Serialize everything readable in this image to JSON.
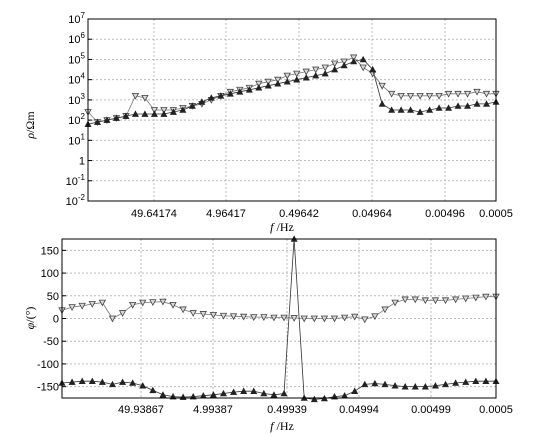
{
  "chart_data": [
    {
      "type": "scatter",
      "xlabel": "f /Hz",
      "ylabel": "ρ/Ωm",
      "yscale": "log",
      "ylim": [
        -2,
        7
      ],
      "yticks": [
        "10-2",
        "10-1",
        "1",
        "101",
        "102",
        "103",
        "104",
        "105",
        "106",
        "107"
      ],
      "xticks": [
        "49.64174",
        "4.96417",
        "0.49642",
        "0.04964",
        "0.00496",
        "0.0005"
      ],
      "grid": true,
      "series": [
        {
          "marker": "triangle-down-open",
          "color": "#777777",
          "x": [
            0,
            1,
            2,
            3,
            4,
            5,
            6,
            7,
            8,
            9,
            10,
            11,
            12,
            13,
            14,
            15,
            16,
            17,
            18,
            19,
            20,
            21,
            22,
            23,
            24,
            25,
            26,
            27,
            28,
            29,
            30,
            31,
            32,
            33,
            34,
            35,
            36,
            37,
            38,
            39,
            40,
            41,
            42,
            43
          ],
          "y": [
            2.4,
            1.9,
            2.0,
            2.1,
            2.2,
            3.2,
            3.1,
            2.5,
            2.5,
            2.5,
            2.6,
            2.7,
            2.8,
            3.0,
            3.2,
            3.4,
            3.5,
            3.6,
            3.8,
            3.9,
            4.0,
            4.2,
            4.3,
            4.4,
            4.5,
            4.6,
            4.8,
            4.9,
            5.1,
            4.6,
            4.3,
            3.7,
            3.3,
            3.2,
            3.2,
            3.2,
            3.2,
            3.2,
            3.3,
            3.3,
            3.3,
            3.4,
            3.3,
            3.3
          ]
        },
        {
          "marker": "triangle-up-filled",
          "color": "#333333",
          "x": [
            0,
            1,
            2,
            3,
            4,
            5,
            6,
            7,
            8,
            9,
            10,
            11,
            12,
            13,
            14,
            15,
            16,
            17,
            18,
            19,
            20,
            21,
            22,
            23,
            24,
            25,
            26,
            27,
            28,
            29,
            30,
            31,
            32,
            33,
            34,
            35,
            36,
            37,
            38,
            39,
            40,
            41,
            42,
            43
          ],
          "y": [
            1.8,
            1.9,
            2.0,
            2.1,
            2.2,
            2.3,
            2.3,
            2.3,
            2.3,
            2.4,
            2.5,
            2.7,
            2.9,
            3.1,
            3.2,
            3.3,
            3.4,
            3.5,
            3.6,
            3.7,
            3.8,
            3.9,
            4.0,
            4.1,
            4.2,
            4.3,
            4.5,
            4.7,
            4.9,
            5.0,
            4.5,
            2.8,
            2.5,
            2.5,
            2.5,
            2.4,
            2.5,
            2.6,
            2.6,
            2.7,
            2.7,
            2.8,
            2.8,
            2.9
          ]
        }
      ]
    },
    {
      "type": "scatter",
      "xlabel": "f /Hz",
      "ylabel": "φ/(°)",
      "ylim": [
        -175,
        175
      ],
      "yticks": [
        -150,
        -100,
        -50,
        0,
        50,
        100,
        150
      ],
      "xticks": [
        "49.93867",
        "4.99387",
        "0.49939",
        "0.04994",
        "0.00499",
        "0.0005"
      ],
      "grid": true,
      "series": [
        {
          "marker": "triangle-down-open",
          "color": "#777777",
          "x": [
            0,
            1,
            2,
            3,
            4,
            5,
            6,
            7,
            8,
            9,
            10,
            11,
            12,
            13,
            14,
            15,
            16,
            17,
            18,
            19,
            20,
            21,
            22,
            23,
            24,
            25,
            26,
            27,
            28,
            29,
            30,
            31,
            32,
            33,
            34,
            35,
            36,
            37,
            38,
            39,
            40,
            41,
            42,
            43
          ],
          "y": [
            18,
            25,
            28,
            32,
            35,
            0,
            12,
            30,
            35,
            36,
            37,
            30,
            20,
            12,
            10,
            8,
            6,
            5,
            4,
            3,
            3,
            2,
            2,
            1,
            0,
            0,
            0,
            0,
            2,
            4,
            -2,
            5,
            20,
            35,
            42,
            42,
            40,
            40,
            40,
            42,
            44,
            46,
            48,
            48
          ]
        },
        {
          "marker": "triangle-up-filled",
          "color": "#333333",
          "x": [
            0,
            1,
            2,
            3,
            4,
            5,
            6,
            7,
            8,
            9,
            10,
            11,
            12,
            13,
            14,
            15,
            16,
            17,
            18,
            19,
            20,
            21,
            22,
            23,
            24,
            25,
            26,
            27,
            28,
            29,
            30,
            31,
            32,
            33,
            34,
            35,
            36,
            37,
            38,
            39,
            40,
            41,
            42,
            43
          ],
          "y": [
            -142,
            -140,
            -138,
            -138,
            -140,
            -145,
            -140,
            -142,
            -148,
            -158,
            -168,
            -172,
            -173,
            -172,
            -170,
            -168,
            -165,
            -162,
            -160,
            -160,
            -165,
            -168,
            -165,
            175,
            -175,
            -178,
            -176,
            -172,
            -170,
            -160,
            -145,
            -143,
            -145,
            -148,
            -150,
            -150,
            -150,
            -148,
            -145,
            -142,
            -140,
            -138,
            -138,
            -138
          ]
        }
      ]
    }
  ]
}
